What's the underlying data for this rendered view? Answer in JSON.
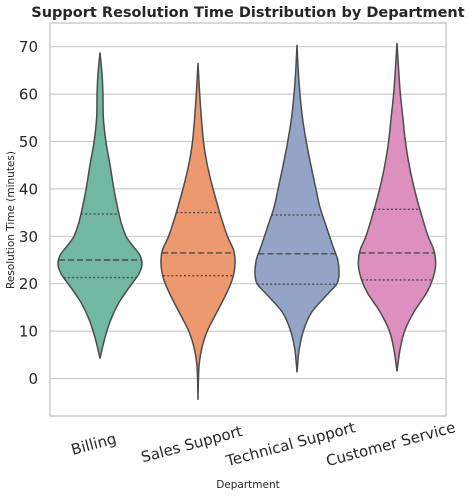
{
  "chart_data": {
    "type": "violin",
    "title": "Support Resolution Time Distribution by Department",
    "xlabel": "Department",
    "ylabel": "Resolution Time (minutes)",
    "ylim": [
      -8,
      76
    ],
    "yticks": [
      0,
      10,
      20,
      30,
      40,
      50,
      60,
      70
    ],
    "grid": true,
    "categories": [
      "Billing",
      "Sales Support",
      "Technical Support",
      "Customer Service"
    ],
    "colors": [
      "#72b7a1",
      "#ed986f",
      "#93a4c6",
      "#dd90c0"
    ],
    "violins": [
      {
        "category": "Billing",
        "min": 4.2,
        "q1": 21.3,
        "median": 25.0,
        "q3": 34.7,
        "max": 68.8,
        "profile": [
          [
            4.2,
            0.0
          ],
          [
            8,
            0.1
          ],
          [
            12,
            0.24
          ],
          [
            16,
            0.45
          ],
          [
            20,
            0.76
          ],
          [
            22,
            0.92
          ],
          [
            24,
            1.0
          ],
          [
            26,
            0.95
          ],
          [
            28,
            0.78
          ],
          [
            30,
            0.62
          ],
          [
            33,
            0.5
          ],
          [
            36,
            0.42
          ],
          [
            40,
            0.33
          ],
          [
            45,
            0.24
          ],
          [
            50,
            0.14
          ],
          [
            55,
            0.08
          ],
          [
            60,
            0.07
          ],
          [
            64,
            0.05
          ],
          [
            68.8,
            0.0
          ]
        ]
      },
      {
        "category": "Sales Support",
        "min": -4.5,
        "q1": 21.7,
        "median": 26.5,
        "q3": 35.0,
        "max": 66.6,
        "profile": [
          [
            -4.5,
            0.0
          ],
          [
            2,
            0.02
          ],
          [
            6,
            0.08
          ],
          [
            10,
            0.22
          ],
          [
            14,
            0.45
          ],
          [
            18,
            0.68
          ],
          [
            21,
            0.82
          ],
          [
            24,
            0.88
          ],
          [
            27,
            0.85
          ],
          [
            30,
            0.7
          ],
          [
            34,
            0.55
          ],
          [
            38,
            0.42
          ],
          [
            42,
            0.3
          ],
          [
            46,
            0.2
          ],
          [
            50,
            0.13
          ],
          [
            55,
            0.08
          ],
          [
            60,
            0.04
          ],
          [
            66.6,
            0.0
          ]
        ]
      },
      {
        "category": "Technical Support",
        "min": 1.3,
        "q1": 19.9,
        "median": 26.3,
        "q3": 34.5,
        "max": 70.4,
        "profile": [
          [
            1.3,
            0.0
          ],
          [
            6,
            0.05
          ],
          [
            10,
            0.15
          ],
          [
            14,
            0.35
          ],
          [
            18,
            0.75
          ],
          [
            20,
            0.95
          ],
          [
            22,
            1.0
          ],
          [
            25,
            0.97
          ],
          [
            28,
            0.85
          ],
          [
            32,
            0.7
          ],
          [
            36,
            0.55
          ],
          [
            40,
            0.45
          ],
          [
            45,
            0.33
          ],
          [
            50,
            0.22
          ],
          [
            55,
            0.13
          ],
          [
            60,
            0.07
          ],
          [
            65,
            0.03
          ],
          [
            70.4,
            0.0
          ]
        ]
      },
      {
        "category": "Customer Service",
        "min": 1.5,
        "q1": 20.8,
        "median": 26.5,
        "q3": 35.7,
        "max": 70.8,
        "profile": [
          [
            1.5,
            0.0
          ],
          [
            6,
            0.07
          ],
          [
            10,
            0.18
          ],
          [
            14,
            0.4
          ],
          [
            18,
            0.7
          ],
          [
            21,
            0.85
          ],
          [
            24,
            0.92
          ],
          [
            27,
            0.88
          ],
          [
            30,
            0.74
          ],
          [
            34,
            0.6
          ],
          [
            38,
            0.47
          ],
          [
            42,
            0.36
          ],
          [
            46,
            0.27
          ],
          [
            50,
            0.2
          ],
          [
            55,
            0.14
          ],
          [
            60,
            0.08
          ],
          [
            65,
            0.04
          ],
          [
            70.8,
            0.0
          ]
        ]
      }
    ]
  }
}
